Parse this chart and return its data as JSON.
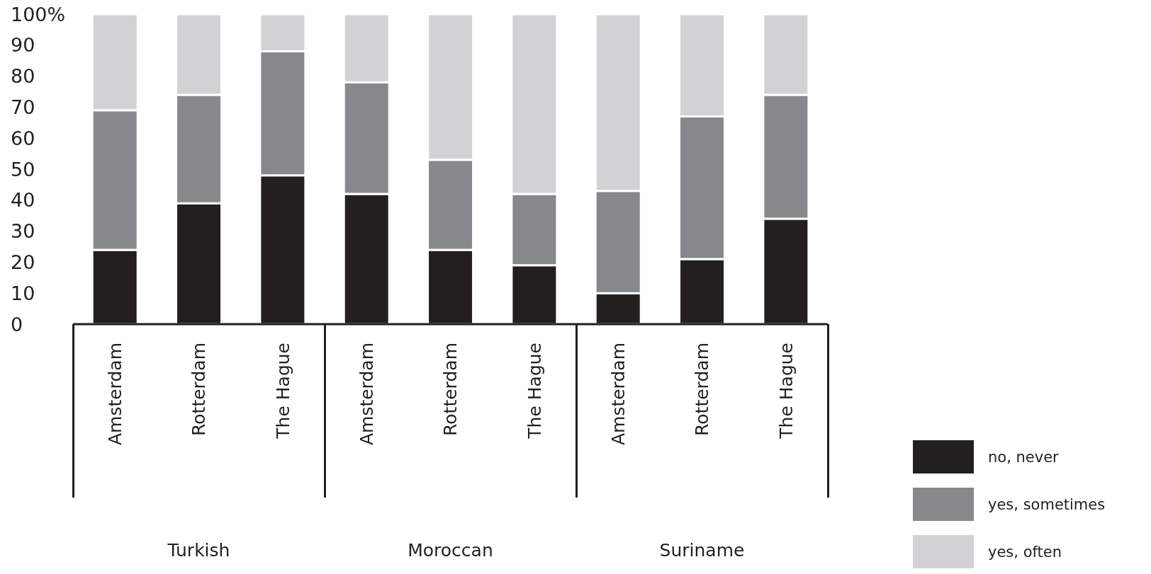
{
  "chart_data": {
    "type": "bar",
    "stacked": true,
    "categories": [
      "Amsterdam",
      "Rotterdam",
      "The Hague",
      "Amsterdam",
      "Rotterdam",
      "The Hague",
      "Amsterdam",
      "Rotterdam",
      "The Hague"
    ],
    "series": [
      {
        "name": "no, never",
        "color": "#231f20",
        "values": [
          24,
          39,
          48,
          42,
          24,
          19,
          10,
          21,
          34
        ]
      },
      {
        "name": "yes, sometimes",
        "color": "#87888c",
        "values": [
          45,
          35,
          40,
          36,
          29,
          23,
          33,
          46,
          40
        ]
      },
      {
        "name": "yes, often",
        "color": "#d1d2d4",
        "values": [
          31,
          26,
          12,
          22,
          47,
          58,
          57,
          33,
          26
        ]
      }
    ],
    "ylim": [
      0,
      100
    ],
    "yticks": [
      0,
      10,
      20,
      30,
      40,
      50,
      60,
      70,
      80,
      90,
      {
        "value": 100,
        "label": "100%"
      }
    ],
    "annotations": [
      "Turkish",
      "Moroccan",
      "Suriname"
    ],
    "grid": false,
    "legend": "bottom right"
  }
}
